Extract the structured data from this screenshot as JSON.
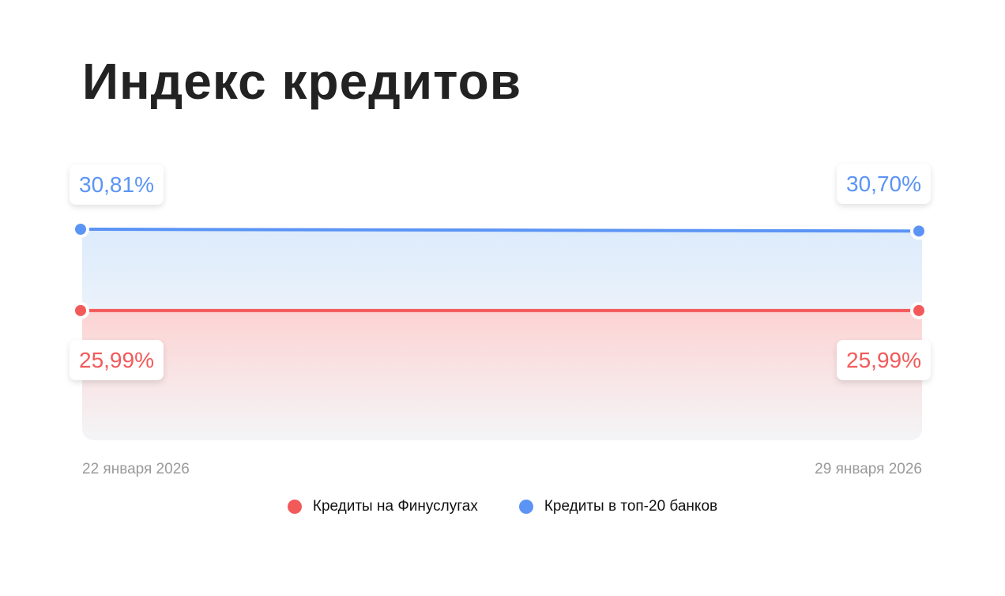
{
  "title": "Индекс кредитов",
  "chart_data": {
    "type": "area",
    "title": "Индекс кредитов",
    "x": [
      "22 января 2026",
      "29 января 2026"
    ],
    "ylim": [
      18.3,
      30.81
    ],
    "grid": false,
    "legend_placement": "bottom",
    "series": [
      {
        "name": "Кредиты на Финуслугах",
        "values": [
          25.99,
          25.99
        ],
        "labels": [
          "25,99%",
          "25,99%"
        ],
        "color": "#f25a5a"
      },
      {
        "name": "Кредиты в топ-20 банков",
        "values": [
          30.81,
          30.7
        ],
        "labels": [
          "30,81%",
          "30,70%"
        ],
        "color": "#5b94f5"
      }
    ]
  }
}
